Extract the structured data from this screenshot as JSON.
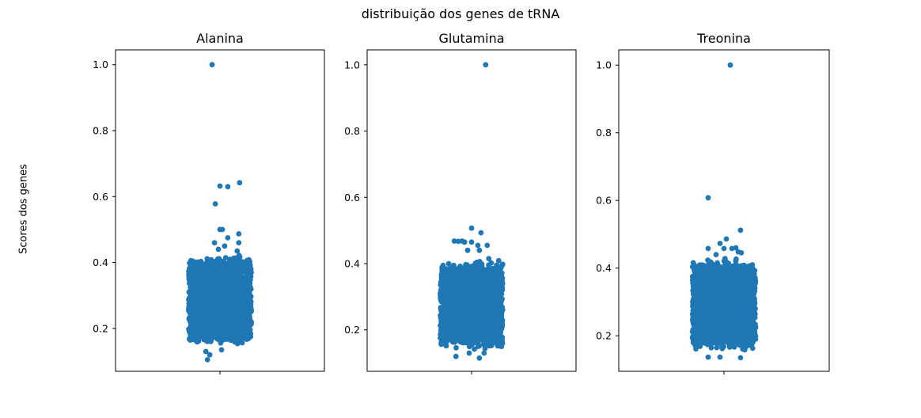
{
  "figure": {
    "title": "distribuição dos genes de tRNA",
    "ylabel": "Scores dos genes",
    "point_color": "#1f77b4"
  },
  "chart_data": [
    {
      "type": "scatter",
      "subtype": "strip",
      "title": "Alanina",
      "xlabel": "",
      "ylabel": "Scores dos genes",
      "ylim": [
        0.07,
        1.045
      ],
      "yticks": [
        0.2,
        0.4,
        0.6,
        0.8,
        1.0
      ],
      "ytick_labels": [
        "0.2",
        "0.4",
        "0.6",
        "0.8",
        "1.0"
      ],
      "grid": false,
      "bulk": {
        "min": 0.145,
        "max": 0.425
      },
      "outliers": [
        {
          "x": -0.1,
          "y": 1.0
        },
        {
          "x": 0.25,
          "y": 0.642
        },
        {
          "x": 0.0,
          "y": 0.632
        },
        {
          "x": 0.1,
          "y": 0.63
        },
        {
          "x": -0.06,
          "y": 0.578
        },
        {
          "x": 0.0,
          "y": 0.5
        },
        {
          "x": 0.03,
          "y": 0.5
        },
        {
          "x": 0.24,
          "y": 0.487
        },
        {
          "x": 0.1,
          "y": 0.475
        },
        {
          "x": 0.24,
          "y": 0.46
        },
        {
          "x": -0.07,
          "y": 0.46
        },
        {
          "x": 0.06,
          "y": 0.45
        },
        {
          "x": -0.02,
          "y": 0.44
        },
        {
          "x": 0.22,
          "y": 0.435
        },
        {
          "x": -0.18,
          "y": 0.13
        },
        {
          "x": -0.16,
          "y": 0.105
        },
        {
          "x": -0.13,
          "y": 0.12
        },
        {
          "x": 0.02,
          "y": 0.135
        }
      ]
    },
    {
      "type": "scatter",
      "subtype": "strip",
      "title": "Glutamina",
      "xlabel": "",
      "ylabel": "",
      "ylim": [
        0.075,
        1.045
      ],
      "yticks": [
        0.2,
        0.4,
        0.6,
        0.8,
        1.0
      ],
      "ytick_labels": [
        "0.2",
        "0.4",
        "0.6",
        "0.8",
        "1.0"
      ],
      "grid": false,
      "bulk": {
        "min": 0.14,
        "max": 0.41
      },
      "outliers": [
        {
          "x": 0.18,
          "y": 1.0
        },
        {
          "x": 0.0,
          "y": 0.507
        },
        {
          "x": 0.12,
          "y": 0.493
        },
        {
          "x": -0.22,
          "y": 0.468
        },
        {
          "x": -0.17,
          "y": 0.467
        },
        {
          "x": -0.12,
          "y": 0.468
        },
        {
          "x": -0.09,
          "y": 0.465
        },
        {
          "x": 0.0,
          "y": 0.465
        },
        {
          "x": 0.08,
          "y": 0.455
        },
        {
          "x": 0.2,
          "y": 0.455
        },
        {
          "x": 0.1,
          "y": 0.44
        },
        {
          "x": -0.05,
          "y": 0.44
        },
        {
          "x": 0.22,
          "y": 0.415
        },
        {
          "x": -0.2,
          "y": 0.12
        },
        {
          "x": 0.1,
          "y": 0.115
        },
        {
          "x": -0.03,
          "y": 0.13
        },
        {
          "x": 0.16,
          "y": 0.13
        }
      ]
    },
    {
      "type": "scatter",
      "subtype": "strip",
      "title": "Treonina",
      "xlabel": "",
      "ylabel": "",
      "ylim": [
        0.095,
        1.045
      ],
      "yticks": [
        0.2,
        0.4,
        0.6,
        0.8,
        1.0
      ],
      "ytick_labels": [
        "0.2",
        "0.4",
        "0.6",
        "0.8",
        "1.0"
      ],
      "grid": false,
      "bulk": {
        "min": 0.155,
        "max": 0.43
      },
      "outliers": [
        {
          "x": 0.08,
          "y": 1.0
        },
        {
          "x": -0.2,
          "y": 0.608
        },
        {
          "x": 0.21,
          "y": 0.512
        },
        {
          "x": 0.03,
          "y": 0.486
        },
        {
          "x": -0.05,
          "y": 0.473
        },
        {
          "x": 0.0,
          "y": 0.458
        },
        {
          "x": 0.1,
          "y": 0.458
        },
        {
          "x": -0.2,
          "y": 0.458
        },
        {
          "x": 0.15,
          "y": 0.46
        },
        {
          "x": 0.18,
          "y": 0.448
        },
        {
          "x": 0.22,
          "y": 0.445
        },
        {
          "x": -0.1,
          "y": 0.44
        },
        {
          "x": -0.2,
          "y": 0.137
        },
        {
          "x": -0.05,
          "y": 0.137
        },
        {
          "x": 0.21,
          "y": 0.135
        }
      ]
    }
  ]
}
